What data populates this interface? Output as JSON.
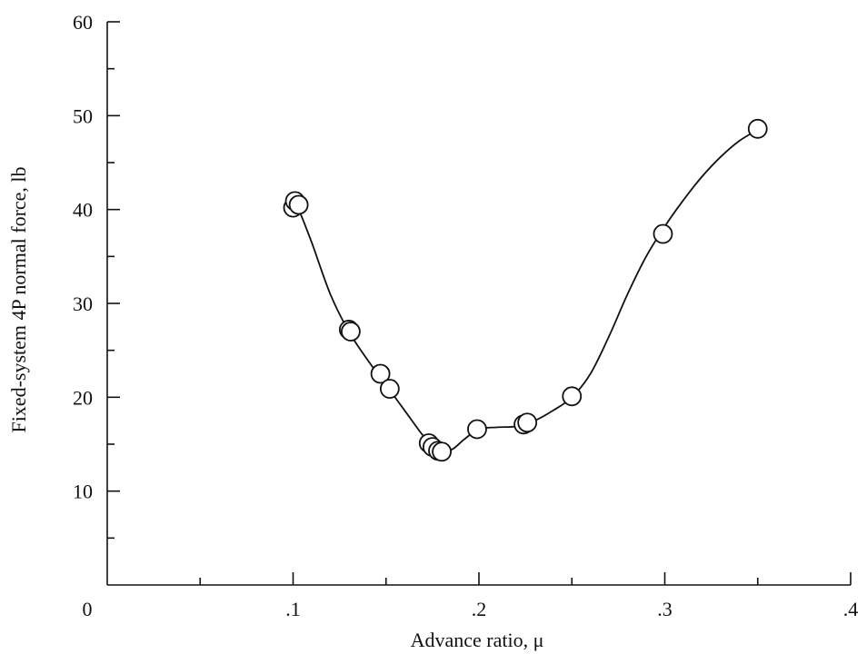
{
  "chart_data": {
    "type": "line",
    "xlabel": "Advance ratio, μ",
    "ylabel": "Fixed-system 4P normal force, lb",
    "xlim": [
      0,
      0.4
    ],
    "ylim": [
      0,
      60
    ],
    "x_ticks": [
      {
        "value": 0,
        "label": "0"
      },
      {
        "value": 0.1,
        "label": ".1"
      },
      {
        "value": 0.2,
        "label": ".2"
      },
      {
        "value": 0.3,
        "label": ".3"
      },
      {
        "value": 0.4,
        "label": ".4"
      }
    ],
    "x_minor_ticks": [
      0.05,
      0.15,
      0.25,
      0.35
    ],
    "y_ticks": [
      {
        "value": 10,
        "label": "10"
      },
      {
        "value": 20,
        "label": "20"
      },
      {
        "value": 30,
        "label": "30"
      },
      {
        "value": 40,
        "label": "40"
      },
      {
        "value": 50,
        "label": "50"
      },
      {
        "value": 60,
        "label": "60"
      }
    ],
    "y_minor_ticks": [
      5,
      15,
      25,
      35,
      45,
      55
    ],
    "grid": false,
    "series": [
      {
        "marker": "open-circle",
        "points": [
          {
            "x": 0.1,
            "y": 40.2
          },
          {
            "x": 0.101,
            "y": 40.9
          },
          {
            "x": 0.103,
            "y": 40.5
          },
          {
            "x": 0.13,
            "y": 27.2
          },
          {
            "x": 0.131,
            "y": 27.0
          },
          {
            "x": 0.147,
            "y": 22.5
          },
          {
            "x": 0.152,
            "y": 20.9
          },
          {
            "x": 0.173,
            "y": 15.1
          },
          {
            "x": 0.175,
            "y": 14.7
          },
          {
            "x": 0.178,
            "y": 14.3
          },
          {
            "x": 0.18,
            "y": 14.2
          },
          {
            "x": 0.199,
            "y": 16.6
          },
          {
            "x": 0.224,
            "y": 17.1
          },
          {
            "x": 0.226,
            "y": 17.3
          },
          {
            "x": 0.25,
            "y": 20.1
          },
          {
            "x": 0.299,
            "y": 37.4
          },
          {
            "x": 0.35,
            "y": 48.6
          }
        ],
        "curve": [
          [
            0.1,
            41.0
          ],
          [
            0.103,
            40.0
          ],
          [
            0.11,
            36.5
          ],
          [
            0.12,
            31.0
          ],
          [
            0.13,
            27.0
          ],
          [
            0.14,
            24.0
          ],
          [
            0.15,
            21.3
          ],
          [
            0.16,
            18.6
          ],
          [
            0.17,
            15.9
          ],
          [
            0.176,
            14.8
          ],
          [
            0.18,
            14.2
          ],
          [
            0.186,
            14.5
          ],
          [
            0.192,
            15.5
          ],
          [
            0.2,
            16.6
          ],
          [
            0.21,
            16.8
          ],
          [
            0.22,
            16.9
          ],
          [
            0.23,
            17.5
          ],
          [
            0.24,
            18.6
          ],
          [
            0.25,
            20.0
          ],
          [
            0.26,
            22.5
          ],
          [
            0.27,
            26.5
          ],
          [
            0.28,
            31.0
          ],
          [
            0.29,
            35.0
          ],
          [
            0.3,
            38.2
          ],
          [
            0.31,
            41.0
          ],
          [
            0.32,
            43.5
          ],
          [
            0.33,
            45.6
          ],
          [
            0.34,
            47.3
          ],
          [
            0.35,
            48.5
          ]
        ]
      }
    ]
  }
}
